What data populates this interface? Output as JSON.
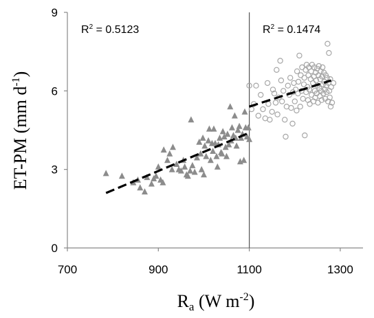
{
  "chart_data": {
    "type": "scatter",
    "title": "",
    "xlabel_base": "R",
    "xlabel_sub": "a",
    "xlabel_rest": " (W m",
    "xlabel_sup": "-2",
    "xlabel_end": ")",
    "ylabel_base": "ET-PM (mm d",
    "ylabel_sup": "-1",
    "ylabel_end": ")",
    "xlim": [
      700,
      1350
    ],
    "ylim": [
      0,
      9
    ],
    "xticks": [
      "700",
      "900",
      "1100",
      "1300"
    ],
    "yticks": [
      "0",
      "3",
      "6",
      "9"
    ],
    "grid": false,
    "divider_x": 1100,
    "annotations": {
      "left_r2_label": "R",
      "left_r2_sup": "2",
      "left_r2_value": " = 0.5123",
      "right_r2_label": "R",
      "right_r2_sup": "2",
      "right_r2_value": " = 0.1474"
    },
    "colors": {
      "triangle_fill": "#8c8c8c",
      "circle_stroke": "#a6a6a6",
      "trend_line": "#000000",
      "divider": "#555555",
      "axis": "#888888"
    },
    "series": [
      {
        "marker": "triangle",
        "points": [
          [
            785,
            2.85
          ],
          [
            820,
            2.75
          ],
          [
            845,
            2.5
          ],
          [
            855,
            2.6
          ],
          [
            860,
            2.3
          ],
          [
            870,
            2.15
          ],
          [
            875,
            2.7
          ],
          [
            885,
            2.45
          ],
          [
            890,
            2.65
          ],
          [
            895,
            2.75
          ],
          [
            900,
            3.1
          ],
          [
            905,
            2.6
          ],
          [
            910,
            2.5
          ],
          [
            912,
            3.75
          ],
          [
            920,
            3.35
          ],
          [
            925,
            3.6
          ],
          [
            930,
            3.0
          ],
          [
            932,
            3.85
          ],
          [
            940,
            3.2
          ],
          [
            945,
            3.0
          ],
          [
            950,
            2.95
          ],
          [
            955,
            3.35
          ],
          [
            958,
            3.1
          ],
          [
            962,
            2.8
          ],
          [
            965,
            2.75
          ],
          [
            970,
            2.95
          ],
          [
            972,
            4.9
          ],
          [
            975,
            3.15
          ],
          [
            980,
            2.9
          ],
          [
            985,
            3.45
          ],
          [
            990,
            4.05
          ],
          [
            993,
            3.6
          ],
          [
            995,
            3.0
          ],
          [
            998,
            4.2
          ],
          [
            1000,
            2.8
          ],
          [
            1002,
            3.9
          ],
          [
            1005,
            3.5
          ],
          [
            1010,
            4.1
          ],
          [
            1012,
            4.55
          ],
          [
            1015,
            3.35
          ],
          [
            1018,
            4.0
          ],
          [
            1020,
            3.7
          ],
          [
            1022,
            4.55
          ],
          [
            1025,
            4.0
          ],
          [
            1028,
            3.5
          ],
          [
            1030,
            3.1
          ],
          [
            1032,
            3.95
          ],
          [
            1035,
            4.2
          ],
          [
            1038,
            3.65
          ],
          [
            1040,
            3.6
          ],
          [
            1042,
            4.45
          ],
          [
            1045,
            4.25
          ],
          [
            1048,
            3.85
          ],
          [
            1050,
            3.5
          ],
          [
            1052,
            4.35
          ],
          [
            1055,
            3.95
          ],
          [
            1058,
            5.4
          ],
          [
            1060,
            4.1
          ],
          [
            1062,
            4.6
          ],
          [
            1065,
            4.3
          ],
          [
            1068,
            5.05
          ],
          [
            1070,
            4.2
          ],
          [
            1072,
            3.9
          ],
          [
            1075,
            4.5
          ],
          [
            1078,
            4.65
          ],
          [
            1080,
            3.3
          ],
          [
            1082,
            4.2
          ],
          [
            1085,
            4.35
          ],
          [
            1088,
            3.35
          ],
          [
            1090,
            5.2
          ],
          [
            1092,
            4.6
          ],
          [
            1095,
            4.25
          ],
          [
            1098,
            4.6
          ],
          [
            1100,
            4.15
          ]
        ]
      },
      {
        "marker": "circle",
        "points": [
          [
            1100,
            6.2
          ],
          [
            1105,
            5.3
          ],
          [
            1110,
            5.5
          ],
          [
            1115,
            6.2
          ],
          [
            1120,
            5.05
          ],
          [
            1125,
            5.85
          ],
          [
            1130,
            5.3
          ],
          [
            1135,
            4.95
          ],
          [
            1140,
            6.3
          ],
          [
            1142,
            5.5
          ],
          [
            1145,
            4.9
          ],
          [
            1150,
            5.2
          ],
          [
            1152,
            6.05
          ],
          [
            1155,
            5.9
          ],
          [
            1158,
            5.55
          ],
          [
            1160,
            6.8
          ],
          [
            1162,
            5.1
          ],
          [
            1165,
            5.75
          ],
          [
            1168,
            7.15
          ],
          [
            1170,
            6.4
          ],
          [
            1172,
            5.6
          ],
          [
            1175,
            6.0
          ],
          [
            1178,
            4.9
          ],
          [
            1180,
            4.25
          ],
          [
            1182,
            5.4
          ],
          [
            1185,
            6.2
          ],
          [
            1188,
            5.85
          ],
          [
            1190,
            6.5
          ],
          [
            1192,
            5.35
          ],
          [
            1195,
            4.75
          ],
          [
            1196,
            5.95
          ],
          [
            1198,
            6.3
          ],
          [
            1200,
            5.6
          ],
          [
            1202,
            6.05
          ],
          [
            1204,
            5.25
          ],
          [
            1205,
            6.75
          ],
          [
            1207,
            5.9
          ],
          [
            1208,
            6.35
          ],
          [
            1210,
            7.35
          ],
          [
            1212,
            5.4
          ],
          [
            1213,
            6.6
          ],
          [
            1215,
            6.0
          ],
          [
            1216,
            6.9
          ],
          [
            1218,
            5.7
          ],
          [
            1220,
            6.25
          ],
          [
            1221,
            6.5
          ],
          [
            1222,
            4.3
          ],
          [
            1224,
            6.8
          ],
          [
            1225,
            5.95
          ],
          [
            1226,
            7.0
          ],
          [
            1228,
            6.15
          ],
          [
            1229,
            5.65
          ],
          [
            1230,
            6.6
          ],
          [
            1231,
            6.9
          ],
          [
            1232,
            6.05
          ],
          [
            1233,
            5.5
          ],
          [
            1235,
            6.45
          ],
          [
            1236,
            6.75
          ],
          [
            1237,
            5.85
          ],
          [
            1238,
            7.0
          ],
          [
            1240,
            6.3
          ],
          [
            1241,
            5.6
          ],
          [
            1242,
            6.55
          ],
          [
            1243,
            6.9
          ],
          [
            1244,
            6.0
          ],
          [
            1245,
            5.75
          ],
          [
            1246,
            6.7
          ],
          [
            1247,
            6.4
          ],
          [
            1248,
            5.9
          ],
          [
            1249,
            6.85
          ],
          [
            1250,
            6.2
          ],
          [
            1251,
            5.55
          ],
          [
            1252,
            6.6
          ],
          [
            1253,
            6.95
          ],
          [
            1254,
            6.1
          ],
          [
            1255,
            5.8
          ],
          [
            1256,
            6.45
          ],
          [
            1257,
            6.75
          ],
          [
            1258,
            6.0
          ],
          [
            1259,
            5.65
          ],
          [
            1260,
            6.55
          ],
          [
            1261,
            6.9
          ],
          [
            1262,
            6.25
          ],
          [
            1263,
            5.9
          ],
          [
            1264,
            6.7
          ],
          [
            1265,
            6.35
          ],
          [
            1266,
            6.05
          ],
          [
            1267,
            5.7
          ],
          [
            1268,
            6.6
          ],
          [
            1269,
            6.2
          ],
          [
            1270,
            5.95
          ],
          [
            1271,
            6.5
          ],
          [
            1272,
            7.8
          ],
          [
            1273,
            5.6
          ],
          [
            1274,
            6.3
          ],
          [
            1275,
            7.45
          ],
          [
            1276,
            6.0
          ],
          [
            1277,
            5.75
          ],
          [
            1278,
            6.45
          ],
          [
            1279,
            5.4
          ],
          [
            1280,
            6.15
          ],
          [
            1282,
            5.55
          ],
          [
            1285,
            6.3
          ]
        ]
      }
    ],
    "trendlines": [
      {
        "style": "dashed",
        "x": [
          785,
          1100
        ],
        "y": [
          2.1,
          4.4
        ]
      },
      {
        "style": "dashed",
        "x": [
          1100,
          1280
        ],
        "y": [
          5.4,
          6.4
        ]
      }
    ]
  }
}
